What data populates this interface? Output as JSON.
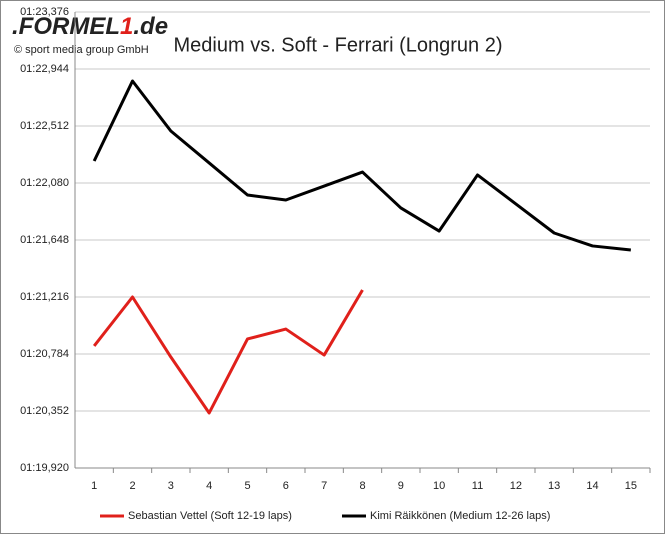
{
  "logo": {
    "left": ".FORMEL",
    "mark": "1",
    "right": ".de"
  },
  "copyright": "© sport media group GmbH",
  "chart_data": {
    "type": "line",
    "title": "Medium vs. Soft - Ferrari (Longrun 2)",
    "categories": [
      "1",
      "2",
      "3",
      "4",
      "5",
      "6",
      "7",
      "8",
      "9",
      "10",
      "11",
      "12",
      "13",
      "14",
      "15"
    ],
    "series": [
      {
        "name": "Sebastian Vettel (Soft 12-19 laps)",
        "color": "#e0201b",
        "values": [
          80.845,
          81.216,
          80.761,
          80.337,
          80.898,
          80.973,
          80.776,
          81.269,
          null,
          null,
          null,
          null,
          null,
          null,
          null
        ]
      },
      {
        "name": "Kimi Räikkönen (Medium 12-26 laps)",
        "color": "#000000",
        "values": [
          82.247,
          82.853,
          82.474,
          82.232,
          81.989,
          81.951,
          82.057,
          82.163,
          81.891,
          81.716,
          82.141,
          81.921,
          81.701,
          81.603,
          81.572
        ]
      }
    ],
    "ylim": [
      79.92,
      83.376
    ],
    "yticks": [
      {
        "value": 79.92,
        "label": "01:19,920"
      },
      {
        "value": 80.352,
        "label": "01:20,352"
      },
      {
        "value": 80.784,
        "label": "01:20,784"
      },
      {
        "value": 81.216,
        "label": "01:21,216"
      },
      {
        "value": 81.648,
        "label": "01:21,648"
      },
      {
        "value": 82.08,
        "label": "01:22,080"
      },
      {
        "value": 82.512,
        "label": "01:22,512"
      },
      {
        "value": 82.944,
        "label": "01:22,944"
      },
      {
        "value": 83.376,
        "label": "01:23,376"
      }
    ],
    "grid": true,
    "legend": "bottom"
  }
}
